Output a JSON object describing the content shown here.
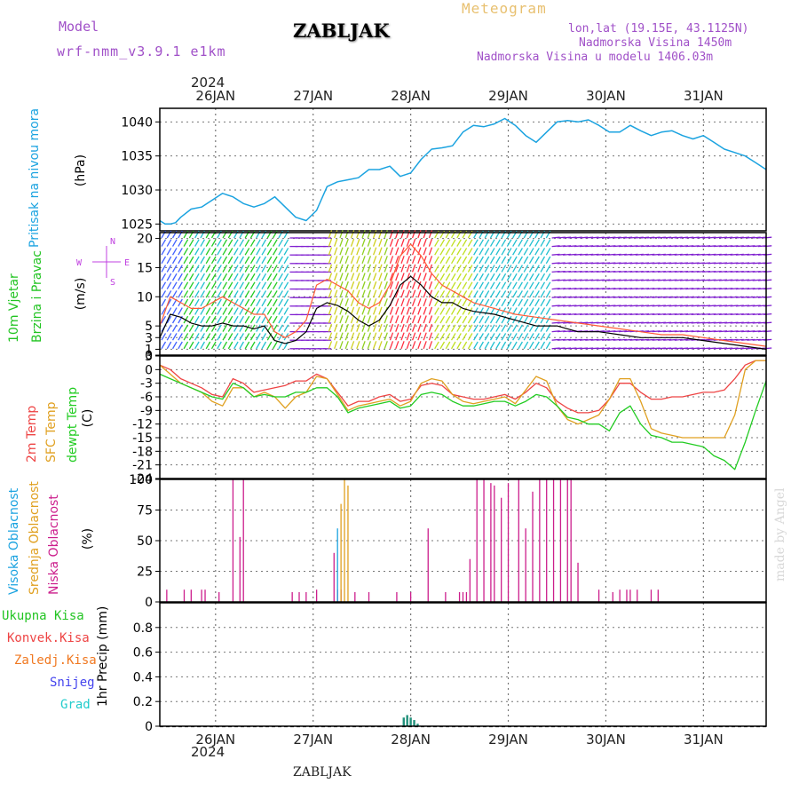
{
  "header": {
    "model_label": "Model",
    "model_name": "wrf-nmm_v3.9.1 e1km",
    "title": "ZABLJAK",
    "meteogram": "Meteogram",
    "lonlat": "lon,lat (19.15E, 43.1125N)",
    "elevation": "Nadmorska Visina 1450m",
    "model_elevation": "Nadmorska Visina u modelu 1406.03m",
    "footer_location": "ZABLJAK",
    "watermark": "made by Angel"
  },
  "colors": {
    "pressure": "#1ba3e0",
    "wind_label": "#22c422",
    "wind_speed": "#000000",
    "gust": "#ff5a36",
    "temp2m": "#ee4444",
    "sfc_temp": "#e0a020",
    "dewpt": "#22cc22",
    "high_cloud": "#1ba3e0",
    "mid_cloud": "#e0a020",
    "low_cloud": "#cc1e8c",
    "precip_total": "#22c422",
    "precip_conv": "#ee4444",
    "precip_frz": "#f07820",
    "precip_snow": "#4444ee",
    "precip_grad": "#22cccc",
    "grid": "#777777"
  },
  "chart_data": [
    {
      "type": "line",
      "id": "pressure",
      "ylabel": "Pritisak na nivou mora",
      "unit": "(hPa)",
      "ylim": [
        1024,
        1042
      ],
      "yticks": [
        1025,
        1030,
        1035,
        1040
      ],
      "x": [
        0,
        1.5,
        3,
        4.5,
        6,
        9,
        12,
        15,
        18,
        21,
        24,
        27,
        30,
        33,
        36,
        39,
        42,
        45,
        48,
        51,
        54,
        57,
        60,
        63,
        66,
        69,
        72,
        75,
        78,
        81,
        84,
        87,
        90,
        93,
        96,
        99,
        102,
        105,
        108,
        111,
        114,
        117,
        120,
        123,
        126,
        129,
        132,
        135,
        138,
        141,
        144,
        147,
        150,
        153,
        156,
        159,
        162,
        165,
        168,
        171,
        174
      ],
      "values": [
        1025.5,
        1025,
        1025,
        1025.2,
        1026,
        1027.2,
        1027.5,
        1028.5,
        1029.5,
        1029,
        1028,
        1027.5,
        1028,
        1029,
        1027.5,
        1026,
        1025.5,
        1027,
        1030.5,
        1031.2,
        1031.5,
        1031.8,
        1033,
        1033,
        1033.5,
        1032,
        1032.5,
        1034.5,
        1036,
        1036.2,
        1036.5,
        1038.5,
        1039.5,
        1039.3,
        1039.7,
        1040.5,
        1039.5,
        1038,
        1037,
        1038.5,
        1040,
        1040.2,
        1040,
        1040.3,
        1039.5,
        1038.5,
        1038.5,
        1039.5,
        1038.7,
        1038,
        1038.5,
        1038.7,
        1038,
        1037.5,
        1038,
        1037,
        1036,
        1035.5,
        1035,
        1034,
        1033
      ]
    },
    {
      "type": "line",
      "id": "wind",
      "ylabel": "10m Vjetar Brzina i Pravac",
      "unit": "(m/s)",
      "ylim": [
        0,
        21
      ],
      "yticks": [
        0,
        1,
        3,
        5,
        10,
        15,
        20
      ],
      "compass": {
        "n": "N",
        "s": "S",
        "e": "E",
        "w": "W"
      },
      "series": [
        {
          "name": "speed",
          "x": [
            0,
            3,
            6,
            9,
            12,
            15,
            18,
            21,
            24,
            27,
            30,
            33,
            36,
            39,
            42,
            45,
            48,
            51,
            54,
            57,
            60,
            63,
            66,
            69,
            72,
            75,
            78,
            81,
            84,
            87,
            90,
            96,
            102,
            108,
            114,
            120,
            126,
            132,
            138,
            144,
            150,
            156,
            162,
            168,
            174
          ],
          "values": [
            3,
            7,
            6.5,
            5.5,
            5,
            5,
            5.5,
            5,
            5,
            4.5,
            5,
            2.5,
            2,
            2.5,
            4,
            8,
            9,
            8.5,
            7.5,
            6,
            5,
            6,
            8.5,
            12,
            13.5,
            12,
            10,
            9,
            9,
            8,
            7.5,
            7,
            6,
            5,
            5,
            4,
            4,
            3.5,
            3,
            3,
            3,
            2.5,
            2,
            1.5,
            1
          ]
        },
        {
          "name": "gust",
          "x": [
            0,
            3,
            6,
            9,
            12,
            15,
            18,
            21,
            24,
            27,
            30,
            33,
            36,
            39,
            42,
            45,
            48,
            51,
            54,
            57,
            60,
            63,
            66,
            69,
            72,
            75,
            78,
            81,
            84,
            87,
            90,
            96,
            102,
            108,
            114,
            120,
            126,
            132,
            138,
            144,
            150,
            156,
            162,
            168,
            174
          ],
          "values": [
            5,
            10,
            9,
            8,
            8,
            9,
            10,
            9,
            8,
            7,
            7,
            4,
            3,
            4,
            6,
            12,
            13,
            12,
            11,
            9,
            8,
            9,
            12,
            17,
            19,
            17,
            14,
            12,
            11,
            10,
            9,
            8,
            7,
            6.5,
            6,
            5.5,
            5,
            4.5,
            4,
            3.5,
            3.5,
            3,
            2.5,
            2,
            1.5
          ]
        }
      ]
    },
    {
      "type": "line",
      "id": "temperature",
      "ylabels": [
        "2m Temp",
        "SFC Temp",
        "dewpt Temp"
      ],
      "unit": "(C)",
      "ylim": [
        -24,
        3
      ],
      "yticks": [
        3,
        0,
        -3,
        -6,
        -9,
        -12,
        -15,
        -18,
        -21,
        -24
      ],
      "x": [
        0,
        3,
        6,
        9,
        12,
        15,
        18,
        21,
        24,
        27,
        30,
        33,
        36,
        39,
        42,
        45,
        48,
        51,
        54,
        57,
        60,
        63,
        66,
        69,
        72,
        75,
        78,
        81,
        84,
        87,
        90,
        93,
        96,
        99,
        102,
        105,
        108,
        111,
        114,
        117,
        120,
        123,
        126,
        129,
        132,
        135,
        138,
        141,
        144,
        147,
        150,
        153,
        156,
        159,
        162,
        165,
        168,
        171,
        174
      ],
      "series": [
        {
          "name": "2m Temp",
          "values": [
            1,
            0,
            -2,
            -3,
            -4,
            -5.5,
            -6,
            -2,
            -3,
            -5,
            -4.5,
            -4,
            -3.5,
            -2.5,
            -2.5,
            -1,
            -2,
            -5,
            -8,
            -7,
            -7,
            -6,
            -5.5,
            -7,
            -6.5,
            -3.5,
            -3,
            -3.5,
            -5.5,
            -6,
            -6.5,
            -6.5,
            -6,
            -5.5,
            -6.5,
            -5,
            -3,
            -4,
            -7,
            -8.5,
            -9.5,
            -9.5,
            -9,
            -6.5,
            -3,
            -3,
            -5,
            -6.5,
            -6.5,
            -6,
            -6,
            -5.5,
            -5,
            -5,
            -4.5,
            -2,
            1,
            2,
            2
          ]
        },
        {
          "name": "SFC Temp",
          "values": [
            1,
            -1,
            -3,
            -4,
            -5,
            -7,
            -8,
            -4,
            -4,
            -6,
            -5,
            -6,
            -8.5,
            -6,
            -5,
            -1.5,
            -2,
            -5.5,
            -9,
            -8,
            -7.5,
            -7,
            -6.5,
            -8,
            -7,
            -3,
            -2,
            -2.5,
            -5.5,
            -7,
            -7.5,
            -7,
            -6.5,
            -6,
            -7.5,
            -4.5,
            -1.5,
            -2.5,
            -8,
            -11,
            -12,
            -11,
            -10,
            -6.5,
            -2,
            -2,
            -7,
            -13,
            -14,
            -14.5,
            -15,
            -15,
            -15,
            -15,
            -15,
            -10,
            0,
            2,
            2
          ]
        },
        {
          "name": "dewpt Temp",
          "values": [
            -1,
            -2,
            -3,
            -4,
            -5,
            -6,
            -6.5,
            -3,
            -4,
            -6,
            -5.5,
            -6,
            -6,
            -5,
            -5,
            -4,
            -4,
            -6,
            -9.5,
            -8.5,
            -8,
            -7.5,
            -7,
            -8.5,
            -8,
            -5.5,
            -5,
            -5.5,
            -7,
            -8,
            -8,
            -7.5,
            -7,
            -7,
            -8,
            -7,
            -5.5,
            -6,
            -8,
            -10.5,
            -11,
            -12,
            -12,
            -13.5,
            -9.5,
            -8,
            -12,
            -14.5,
            -15,
            -16,
            -16,
            -16.5,
            -17,
            -19,
            -20,
            -22,
            -16,
            -9,
            -2.5
          ]
        }
      ]
    },
    {
      "type": "bar",
      "id": "clouds",
      "ylabels": [
        "Visoka Oblacnost",
        "Srednja Oblacnost",
        "Niska Oblacnost"
      ],
      "unit": "(%)",
      "ylim": [
        0,
        100
      ],
      "yticks": [
        0,
        25,
        50,
        75,
        100
      ],
      "series": [
        {
          "name": "Niska Oblacnost",
          "x": [
            2,
            7,
            9,
            12,
            13,
            17,
            21,
            23,
            24,
            38,
            40,
            42,
            45,
            50,
            51,
            52,
            56,
            60,
            68,
            72,
            77,
            82,
            86,
            87,
            88,
            89,
            91,
            93,
            95,
            96,
            98,
            100,
            103,
            105,
            107,
            109,
            111,
            113,
            115,
            117,
            118,
            120,
            126,
            130,
            132,
            134,
            135,
            137,
            141,
            143
          ],
          "values": [
            10,
            10,
            10,
            10,
            10,
            8,
            100,
            53,
            100,
            8,
            8,
            8,
            10,
            40,
            10,
            10,
            8,
            8,
            8,
            8,
            60,
            8,
            8,
            8,
            8,
            35,
            100,
            100,
            97,
            95,
            85,
            97,
            100,
            60,
            90,
            100,
            100,
            100,
            100,
            100,
            100,
            32,
            10,
            8,
            10,
            10,
            10,
            10,
            10,
            10
          ]
        },
        {
          "name": "Srednja Oblacnost",
          "x": [
            52,
            53,
            54
          ],
          "values": [
            80,
            100,
            95
          ]
        },
        {
          "name": "Visoka Oblacnost",
          "x": [
            51
          ],
          "values": [
            60
          ]
        }
      ]
    },
    {
      "type": "bar",
      "id": "precip",
      "ylabel": "1hr Precip",
      "unit": "(mm)",
      "legend": [
        "Ukupna Kisa",
        "Konvek.Kisa",
        "Zaledj.Kisa",
        "Snijeg",
        "Grad"
      ],
      "ylim": [
        0,
        1
      ],
      "yticks": [
        0,
        0.2,
        0.4,
        0.6,
        0.8
      ],
      "x": [
        70,
        71,
        72,
        73,
        74
      ],
      "values": [
        0.07,
        0.09,
        0.07,
        0.05,
        0.02
      ]
    }
  ],
  "time_axis": {
    "xlim": [
      0,
      174
    ],
    "day_ticks": [
      16,
      44,
      72,
      100,
      128,
      156
    ],
    "day_labels": [
      "26JAN",
      "27JAN",
      "28JAN",
      "29JAN",
      "30JAN",
      "31JAN"
    ],
    "year": "2024"
  }
}
